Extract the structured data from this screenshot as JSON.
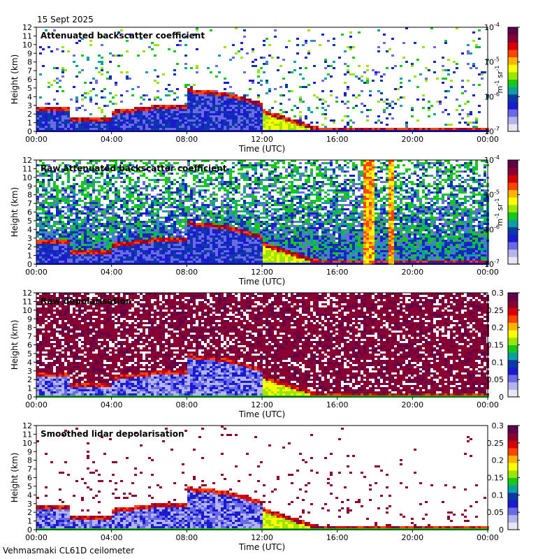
{
  "date_label": "15 Sept 2025",
  "footer": "Vehmasmaki CL61D ceilometer",
  "colors": [
    "#e6e6f5",
    "#b4b4ec",
    "#6a6ae6",
    "#1a1ad0",
    "#0a3aa8",
    "#0aa0a0",
    "#18c818",
    "#9ae600",
    "#ffff00",
    "#ffb400",
    "#ff4400",
    "#d80000",
    "#8a0030",
    "#600048"
  ],
  "chart_data": [
    {
      "type": "heatmap",
      "title": "Attenuated backscatter coefficient",
      "xlabel": "Time (UTC)",
      "ylabel": "Height (km)",
      "x_ticks": [
        "00:00",
        "04:00",
        "08:00",
        "12:00",
        "16:00",
        "20:00",
        "00:00"
      ],
      "xlim_hours": [
        0,
        24
      ],
      "y_ticks": [
        "0",
        "1",
        "2",
        "3",
        "4",
        "5",
        "6",
        "7",
        "8",
        "9",
        "10",
        "11",
        "12"
      ],
      "ylim_km": [
        0,
        12
      ],
      "colorbar": {
        "scale": "log",
        "range": [
          1e-07,
          0.0001
        ],
        "ticks": [
          {
            "base": "10",
            "exp": "-4"
          },
          {
            "base": "10",
            "exp": "-5"
          },
          {
            "base": "10",
            "exp": "-6"
          },
          {
            "base": "10",
            "exp": "-7"
          }
        ],
        "unit": {
          "a": "m",
          "a_exp": "-1",
          "b": "sr",
          "b_exp": "-1"
        }
      },
      "features": {
        "cloud_layer": true,
        "noise": 0.35,
        "background": "white"
      }
    },
    {
      "type": "heatmap",
      "title": "Raw attenuated backscatter coefficient",
      "xlabel": "Time (UTC)",
      "ylabel": "Height (km)",
      "x_ticks": [
        "00:00",
        "04:00",
        "08:00",
        "12:00",
        "16:00",
        "20:00",
        "00:00"
      ],
      "xlim_hours": [
        0,
        24
      ],
      "y_ticks": [
        "0",
        "1",
        "2",
        "3",
        "4",
        "5",
        "6",
        "7",
        "8",
        "9",
        "10",
        "11",
        "12"
      ],
      "ylim_km": [
        0,
        12
      ],
      "colorbar": {
        "scale": "log",
        "range": [
          1e-07,
          0.0001
        ],
        "ticks": [
          {
            "base": "10",
            "exp": "-4"
          },
          {
            "base": "10",
            "exp": "-5"
          },
          {
            "base": "10",
            "exp": "-6"
          },
          {
            "base": "10",
            "exp": "-7"
          }
        ],
        "unit": {
          "a": "m",
          "a_exp": "-1",
          "b": "sr",
          "b_exp": "-1"
        }
      },
      "features": {
        "cloud_layer": true,
        "noise": 0.9,
        "background": "noise-blue"
      }
    },
    {
      "type": "heatmap",
      "title": "Raw depolarisation",
      "xlabel": "Time (UTC)",
      "ylabel": "Height (km)",
      "x_ticks": [
        "00:00",
        "04:00",
        "08:00",
        "12:00",
        "16:00",
        "20:00",
        "00:00"
      ],
      "xlim_hours": [
        0,
        24
      ],
      "y_ticks": [
        "0",
        "1",
        "2",
        "3",
        "4",
        "5",
        "6",
        "7",
        "8",
        "9",
        "10",
        "11",
        "12"
      ],
      "ylim_km": [
        0,
        12
      ],
      "colorbar": {
        "scale": "linear",
        "range": [
          0,
          0.3
        ],
        "ticks": [
          "0.3",
          "0.25",
          "0.2",
          "0.15",
          "0.1",
          "0.05",
          "0"
        ],
        "unit": null
      },
      "features": {
        "cloud_layer": true,
        "noise": 0.8,
        "background": "noise-purple"
      }
    },
    {
      "type": "heatmap",
      "title": "Smoothed lidar depolarisation",
      "xlabel": "Time (UTC)",
      "ylabel": "Height (km)",
      "x_ticks": [
        "00:00",
        "04:00",
        "08:00",
        "12:00",
        "16:00",
        "20:00",
        "00:00"
      ],
      "xlim_hours": [
        0,
        24
      ],
      "y_ticks": [
        "0",
        "1",
        "2",
        "3",
        "4",
        "5",
        "6",
        "7",
        "8",
        "9",
        "10",
        "11",
        "12"
      ],
      "ylim_km": [
        0,
        12
      ],
      "colorbar": {
        "scale": "linear",
        "range": [
          0,
          0.3
        ],
        "ticks": [
          "0.3",
          "0.25",
          "0.2",
          "0.15",
          "0.1",
          "0.05",
          "0"
        ],
        "unit": null
      },
      "features": {
        "cloud_layer": true,
        "noise": 0.12,
        "background": "white"
      }
    }
  ]
}
